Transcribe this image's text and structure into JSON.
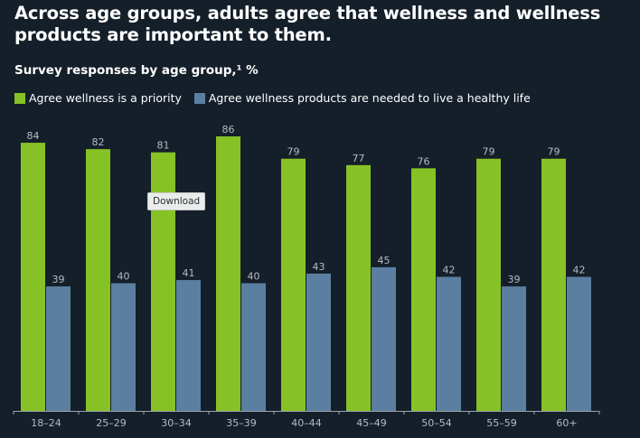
{
  "title": "Across age groups, adults agree that wellness and wellness products are important to them.",
  "subtitle": "Survey responses by age group,¹ %",
  "tooltip": "Download",
  "colors": {
    "background": "#141f29",
    "series1": "#86c226",
    "series2": "#5a7fa1",
    "axis": "#9aa3ad",
    "label": "#b5bcc4"
  },
  "chart_data": {
    "type": "bar",
    "categories": [
      "18–24",
      "25–29",
      "30–34",
      "35–39",
      "40–44",
      "45–49",
      "50–54",
      "55–59",
      "60+"
    ],
    "series": [
      {
        "name": "Agree wellness is a priority",
        "values": [
          84,
          82,
          81,
          86,
          79,
          77,
          76,
          79,
          79
        ]
      },
      {
        "name": "Agree wellness products are needed to live a healthy life",
        "values": [
          39,
          40,
          41,
          40,
          43,
          45,
          42,
          39,
          42
        ]
      }
    ],
    "ylim": [
      0,
      86
    ],
    "grid": false,
    "legend": "top-left"
  }
}
